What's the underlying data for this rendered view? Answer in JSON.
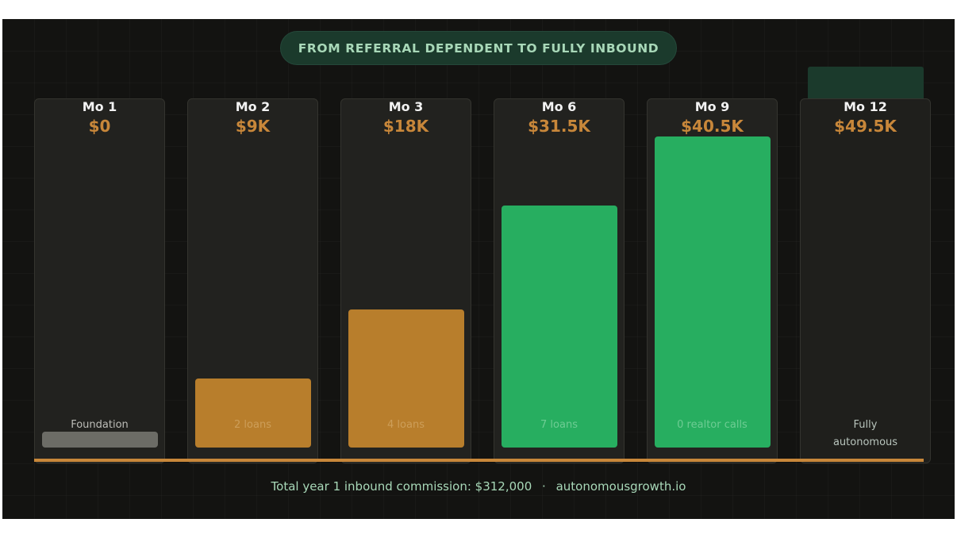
{
  "title": "FROM REFERRAL DEPENDENT TO FULLY INBOUND",
  "footer": {
    "total_text": "Total year 1 inbound commission: $312,000",
    "separator": "·",
    "site": "autonomousgrowth.io"
  },
  "colors": {
    "foundation": "#6c6c66",
    "early": "#b87e2c",
    "growth": "#27ae60",
    "autonomous": "#1b3a2c",
    "value_text": "#c8873a",
    "baseline": "#c8873a"
  },
  "chart_data": {
    "type": "bar",
    "title": "FROM REFERRAL DEPENDENT TO FULLY INBOUND",
    "categories": [
      "Mo 1",
      "Mo 2",
      "Mo 3",
      "Mo 6",
      "Mo 9",
      "Mo 12"
    ],
    "value_labels": [
      "$0",
      "$9K",
      "$18K",
      "$31.5K",
      "$40.5K",
      "$49.5K"
    ],
    "values": [
      0,
      9000,
      18000,
      31500,
      40500,
      49500
    ],
    "bar_labels": [
      "Foundation",
      "2 loans",
      "4 loans",
      "7 loans",
      "0 realtor calls",
      "Fully autonomous"
    ],
    "bar_colors": [
      "#6c6c66",
      "#b87e2c",
      "#b87e2c",
      "#27ae60",
      "#27ae60",
      "#1b3a2c"
    ],
    "ylim": [
      0,
      49500
    ],
    "xlabel": "",
    "ylabel": "",
    "grid": false
  }
}
